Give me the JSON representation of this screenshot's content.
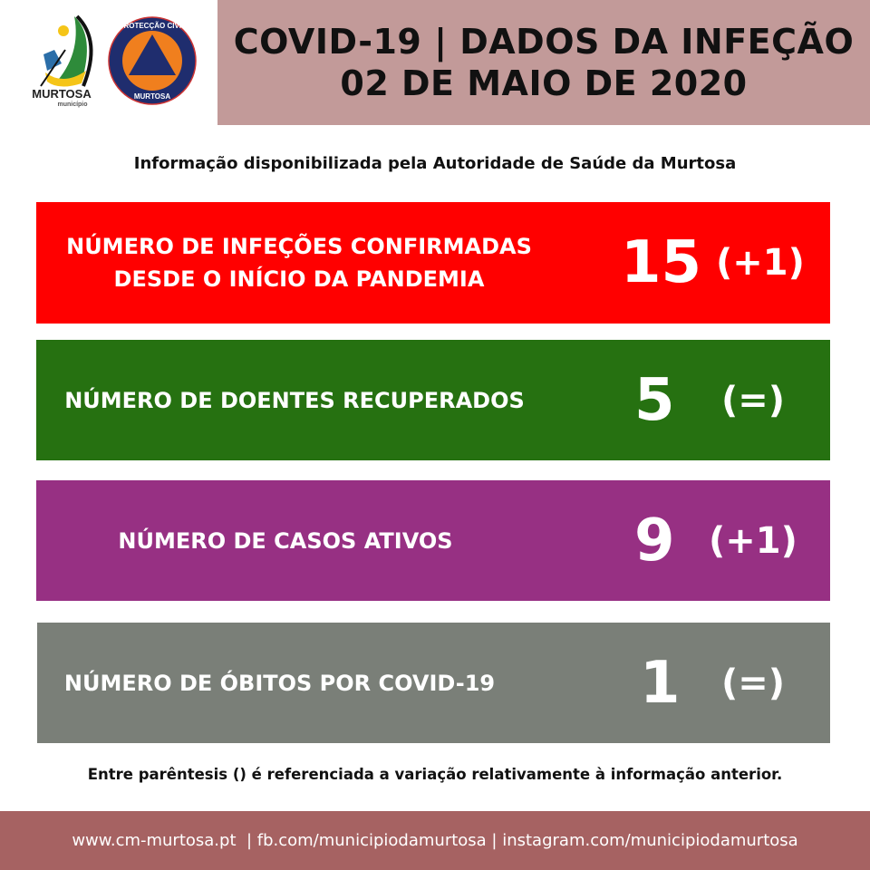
{
  "logos": {
    "municipality": {
      "name": "MURTOSA",
      "sub": "município"
    },
    "civil_protection": {
      "top": "PROTECÇÃO CIVIL",
      "bottom": "MURTOSA"
    }
  },
  "header": {
    "title": "COVID-19 | DADOS DA INFEÇÃO",
    "date": "02 DE MAIO DE 2020"
  },
  "source": "Informação disponibilizada pela Autoridade de Saúde da Murtosa",
  "stats": [
    {
      "label_lines": [
        "NÚMERO DE INFEÇÕES CONFIRMADAS",
        "DESDE O INÍCIO DA PANDEMIA"
      ],
      "value": "15",
      "delta": "(+1)",
      "color": "#ff0000"
    },
    {
      "label_lines": [
        "NÚMERO DE DOENTES RECUPERADOS"
      ],
      "value": "5",
      "delta": "(=)",
      "color": "#267111"
    },
    {
      "label_lines": [
        "NÚMERO DE CASOS ATIVOS"
      ],
      "value": "9",
      "delta": "(+1)",
      "color": "#973083"
    },
    {
      "label_lines": [
        "NÚMERO DE ÓBITOS POR COVID-19"
      ],
      "value": "1",
      "delta": "(=)",
      "color": "#7a7f78"
    }
  ],
  "note": "Entre parêntesis () é referenciada a variação relativamente à informação anterior.",
  "footer": "www.cm-murtosa.pt  | fb.com/municipiodamurtosa | instagram.com/municipiodamurtosa"
}
